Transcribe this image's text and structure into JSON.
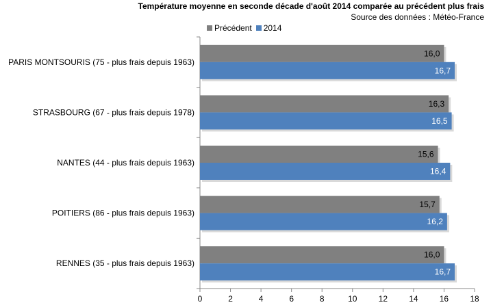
{
  "chart_data": {
    "type": "bar",
    "orientation": "horizontal",
    "title": "Température moyenne en seconde décade d'août 2014 comparée au précédent plus frais",
    "subtitle": "Source des données : Météo-France",
    "categories": [
      "PARIS MONTSOURIS  (75 - plus frais depuis 1963)",
      "STRASBOURG (67 - plus frais depuis 1978)",
      "NANTES (44 - plus frais depuis 1963)",
      "POITIERS  (86 - plus frais depuis 1963)",
      "RENNES (35 - plus frais depuis 1963)"
    ],
    "series": [
      {
        "name": "Précédent",
        "color": "#808080",
        "values": [
          16.0,
          16.3,
          15.6,
          15.7,
          16.0
        ],
        "labels": [
          "16,0",
          "16,3",
          "15,6",
          "15,7",
          "16,0"
        ]
      },
      {
        "name": "2014",
        "color": "#4F81BD",
        "values": [
          16.7,
          16.5,
          16.4,
          16.2,
          16.7
        ],
        "labels": [
          "16,7",
          "16,5",
          "16,4",
          "16,2",
          "16,7"
        ]
      }
    ],
    "xlim": [
      0,
      18
    ],
    "xticks": [
      0,
      2,
      4,
      6,
      8,
      10,
      12,
      14,
      16,
      18
    ],
    "legend": "top-left",
    "grid": false
  }
}
